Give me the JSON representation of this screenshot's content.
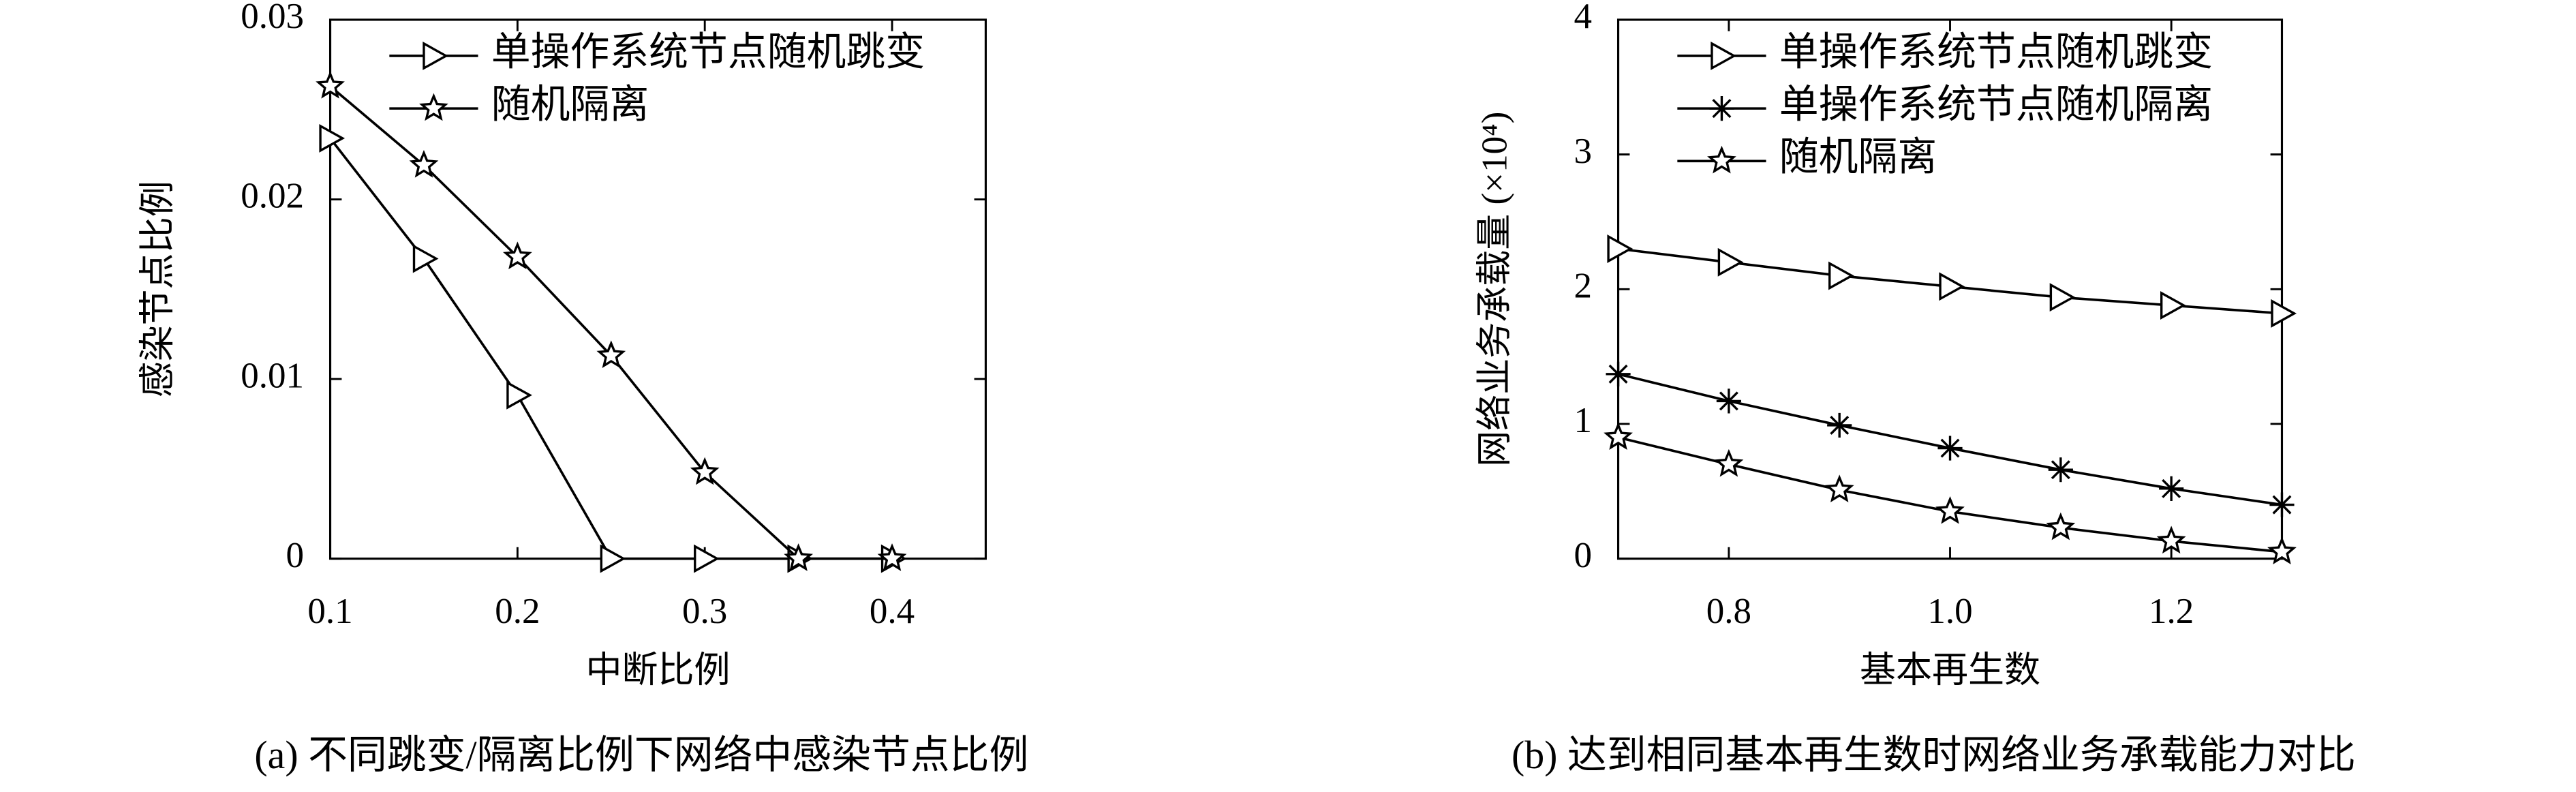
{
  "chart_data": [
    {
      "type": "line",
      "caption": "(a) 不同跳变/隔离比例下网络中感染节点比例",
      "xlabel": "中断比例",
      "ylabel": "感染节点比例",
      "x": [
        0.1,
        0.15,
        0.2,
        0.25,
        0.3,
        0.35,
        0.4
      ],
      "series": [
        {
          "name": "单操作系统节点随机跳变",
          "color": "#000000",
          "marker": "triangle-right",
          "values": [
            0.0234,
            0.0167,
            0.0091,
            0,
            0,
            0,
            0
          ]
        },
        {
          "name": "随机隔离",
          "color": "#000000",
          "marker": "star",
          "values": [
            0.0263,
            0.0219,
            0.0168,
            0.0113,
            0.0048,
            0,
            0
          ]
        }
      ],
      "xlim": [
        0.1,
        0.45
      ],
      "xticks": [
        0.1,
        0.2,
        0.3,
        0.4
      ],
      "ylim": [
        0,
        0.03
      ],
      "yticks": [
        0,
        0.01,
        0.02,
        0.03
      ],
      "legend": "upper left",
      "grid": false
    },
    {
      "type": "line",
      "caption": "(b) 达到相同基本再生数时网络业务承载能力对比",
      "xlabel": "基本再生数",
      "ylabel": "网络业务承载量 (×10⁴)",
      "x": [
        0.7,
        0.8,
        0.9,
        1.0,
        1.1,
        1.2,
        1.3
      ],
      "series": [
        {
          "name": "单操作系统节点随机跳变",
          "color": "#000000",
          "marker": "triangle-right",
          "values": [
            2.3,
            2.2,
            2.1,
            2.02,
            1.94,
            1.88,
            1.82
          ]
        },
        {
          "name": "单操作系统节点随机隔离",
          "color": "#000000",
          "marker": "asterisk",
          "values": [
            1.37,
            1.17,
            0.99,
            0.82,
            0.66,
            0.52,
            0.4
          ]
        },
        {
          "name": "随机隔离",
          "color": "#000000",
          "marker": "star",
          "values": [
            0.9,
            0.7,
            0.51,
            0.35,
            0.23,
            0.13,
            0.05
          ]
        }
      ],
      "xlim": [
        0.7,
        1.3
      ],
      "xticks": [
        0.8,
        {
          "value": 1,
          "label": "1.0"
        },
        1.2
      ],
      "ylim": [
        0,
        4
      ],
      "yticks": [
        0,
        1,
        2,
        3,
        4
      ],
      "legend": "upper left",
      "grid": false
    }
  ]
}
